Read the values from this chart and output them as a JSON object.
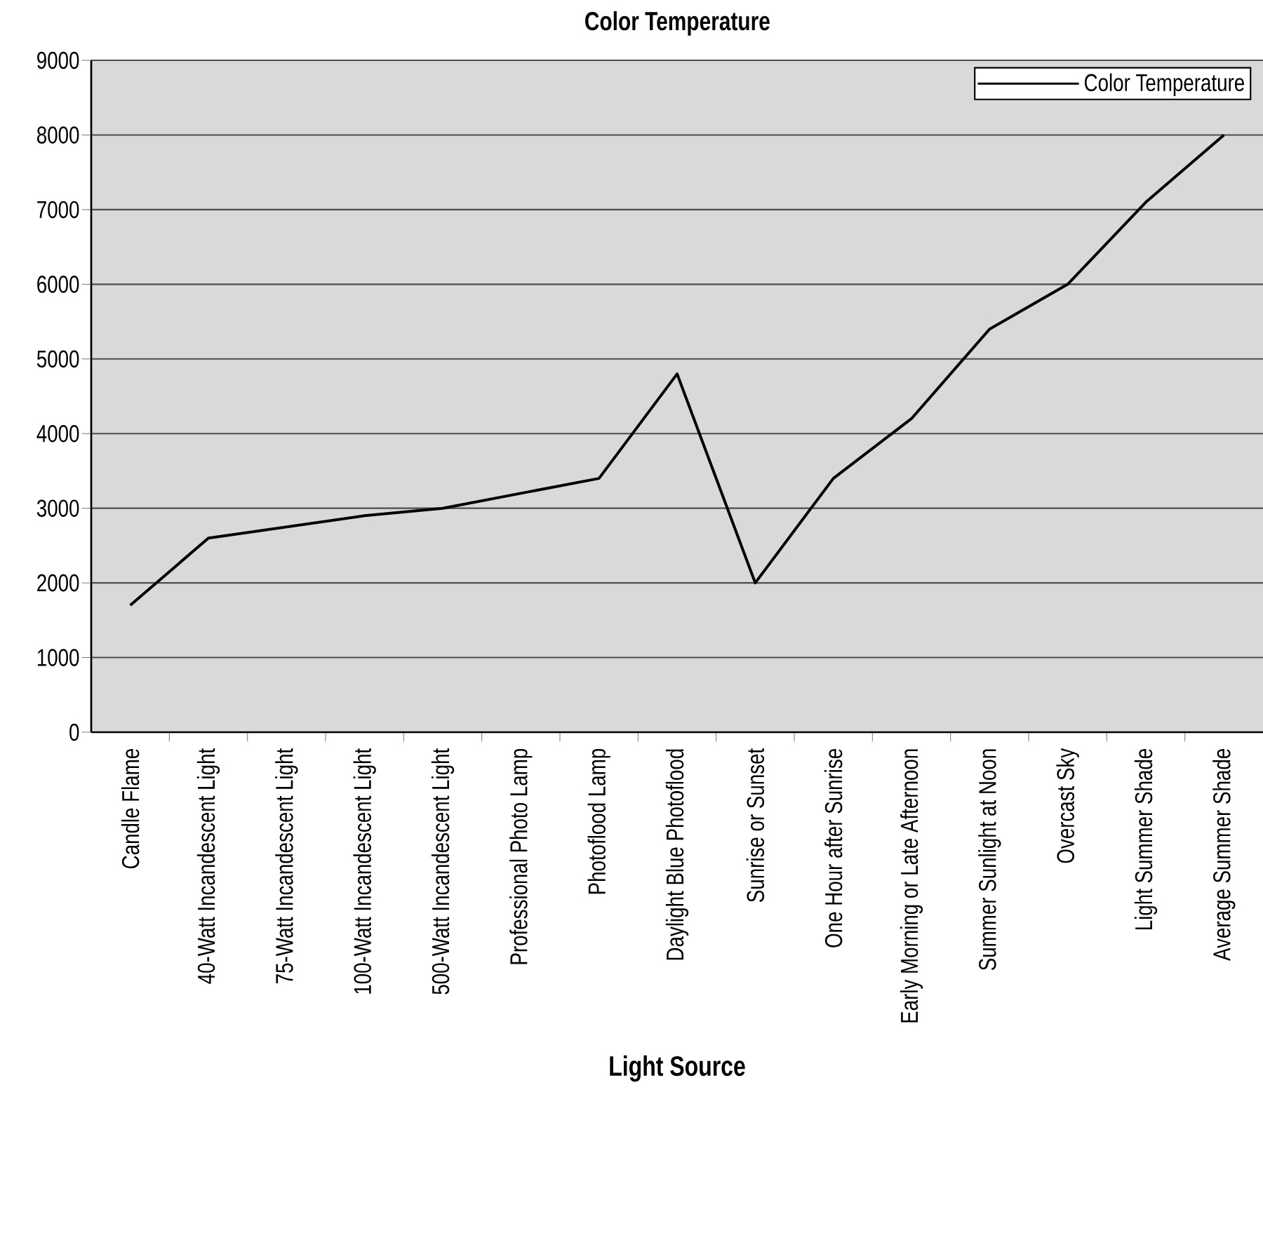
{
  "chart_data": {
    "type": "line",
    "title": "Color Temperature",
    "xlabel": "Light Source",
    "categories": [
      "Candle Flame",
      "40-Watt Incandescent Light",
      "75-Watt Incandescent Light",
      "100-Watt Incandescent Light",
      "500-Watt Incandescent Light",
      "Professional Photo Lamp",
      "Photoflood Lamp",
      "Daylight Blue Photoflood",
      "Sunrise or Sunset",
      "One Hour after Sunrise",
      "Early Morning or Late Afternoon",
      "Summer Sunlight at Noon",
      "Overcast Sky",
      "Light Summer Shade",
      "Average Summer Shade"
    ],
    "series": [
      {
        "name": "Color Temperature",
        "color": "#000000",
        "values": [
          1700,
          2600,
          2750,
          2900,
          3000,
          3200,
          3400,
          4800,
          2000,
          3400,
          4200,
          5400,
          6000,
          7100,
          8000
        ]
      }
    ],
    "ylim": [
      0,
      9000
    ],
    "yticks": [
      0,
      1000,
      2000,
      3000,
      4000,
      5000,
      6000,
      7000,
      8000,
      9000
    ],
    "grid": "y",
    "legend": "top right",
    "marker": "none",
    "line_style": "solid"
  }
}
